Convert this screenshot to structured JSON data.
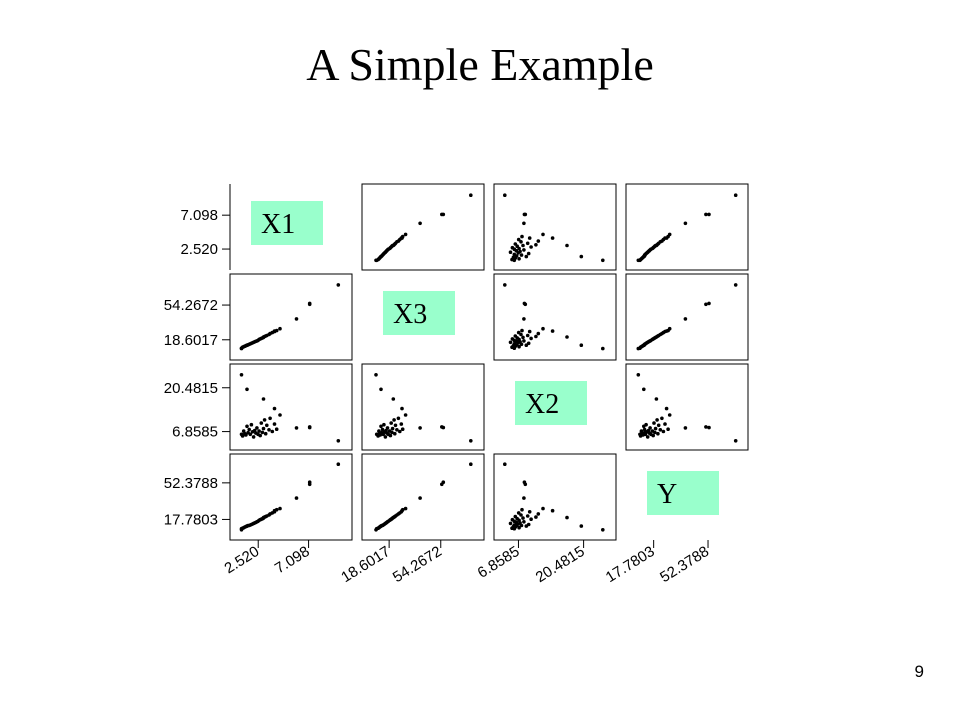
{
  "slide": {
    "title": "A Simple Example",
    "page_number": "9"
  },
  "colors": {
    "label_box": "#99ffcc",
    "points": "#000000",
    "frame": "#000000"
  },
  "chart_data": {
    "type": "scatter",
    "title": "",
    "variables": [
      {
        "name": "X1",
        "ticks": [
          2.52,
          7.098
        ],
        "tick_labels": [
          "2.520",
          "7.098"
        ],
        "range": [
          0.5,
          10.5
        ]
      },
      {
        "name": "X3",
        "ticks": [
          18.6017,
          54.2672
        ],
        "tick_labels": [
          "18.6017",
          "54.2672"
        ],
        "range": [
          4.0,
          80.0
        ]
      },
      {
        "name": "X2",
        "ticks": [
          6.8585,
          20.4815
        ],
        "tick_labels": [
          "6.8585",
          "20.4815"
        ],
        "range": [
          3.0,
          26.0
        ]
      },
      {
        "name": "Y",
        "ticks": [
          17.7803,
          52.3788
        ],
        "tick_labels": [
          "17.7803",
          "52.3788"
        ],
        "range": [
          4.0,
          74.0
        ]
      }
    ],
    "observations": [
      {
        "X1": 1.0,
        "X3": 10.0,
        "X2": 6.0,
        "Y": 9.0
      },
      {
        "X1": 1.1,
        "X3": 11.0,
        "X2": 5.5,
        "Y": 9.5
      },
      {
        "X1": 1.2,
        "X3": 11.5,
        "X2": 7.0,
        "Y": 10.0
      },
      {
        "X1": 1.3,
        "X3": 12.0,
        "X2": 6.2,
        "Y": 10.5
      },
      {
        "X1": 1.4,
        "X3": 12.5,
        "X2": 5.8,
        "Y": 11.0
      },
      {
        "X1": 1.5,
        "X3": 13.0,
        "X2": 8.5,
        "Y": 11.5
      },
      {
        "X1": 1.6,
        "X3": 13.5,
        "X2": 6.5,
        "Y": 12.0
      },
      {
        "X1": 1.7,
        "X3": 14.0,
        "X2": 7.5,
        "Y": 12.0
      },
      {
        "X1": 1.8,
        "X3": 14.5,
        "X2": 6.0,
        "Y": 12.5
      },
      {
        "X1": 1.9,
        "X3": 15.0,
        "X2": 9.0,
        "Y": 13.0
      },
      {
        "X1": 2.0,
        "X3": 15.5,
        "X2": 6.8,
        "Y": 13.5
      },
      {
        "X1": 2.1,
        "X3": 16.0,
        "X2": 5.2,
        "Y": 14.0
      },
      {
        "X1": 2.2,
        "X3": 16.5,
        "X2": 7.2,
        "Y": 14.5
      },
      {
        "X1": 2.3,
        "X3": 17.0,
        "X2": 6.4,
        "Y": 15.0
      },
      {
        "X1": 2.4,
        "X3": 17.5,
        "X2": 8.0,
        "Y": 15.5
      },
      {
        "X1": 2.5,
        "X3": 18.0,
        "X2": 6.0,
        "Y": 16.0
      },
      {
        "X1": 2.6,
        "X3": 19.0,
        "X2": 7.0,
        "Y": 17.0
      },
      {
        "X1": 2.7,
        "X3": 19.5,
        "X2": 5.6,
        "Y": 17.5
      },
      {
        "X1": 2.8,
        "X3": 20.0,
        "X2": 9.5,
        "Y": 18.0
      },
      {
        "X1": 2.9,
        "X3": 20.5,
        "X2": 6.6,
        "Y": 18.5
      },
      {
        "X1": 3.0,
        "X3": 21.0,
        "X2": 7.8,
        "Y": 19.0
      },
      {
        "X1": 3.1,
        "X3": 22.0,
        "X2": 10.5,
        "Y": 20.0
      },
      {
        "X1": 3.2,
        "X3": 22.5,
        "X2": 6.2,
        "Y": 20.5
      },
      {
        "X1": 3.3,
        "X3": 23.0,
        "X2": 8.8,
        "Y": 21.0
      },
      {
        "X1": 3.5,
        "X3": 24.0,
        "X2": 7.4,
        "Y": 22.0
      },
      {
        "X1": 3.6,
        "X3": 25.0,
        "X2": 11.0,
        "Y": 23.0
      },
      {
        "X1": 3.8,
        "X3": 26.0,
        "X2": 6.9,
        "Y": 24.0
      },
      {
        "X1": 4.0,
        "X3": 27.0,
        "X2": 9.2,
        "Y": 25.0
      },
      {
        "X1": 4.2,
        "X3": 28.0,
        "X2": 7.6,
        "Y": 27.0
      },
      {
        "X1": 4.5,
        "X3": 30.0,
        "X2": 12.0,
        "Y": 28.0
      },
      {
        "X1": 4.0,
        "X3": 27.5,
        "X2": 14.0,
        "Y": 26.0
      },
      {
        "X1": 3.0,
        "X3": 21.5,
        "X2": 17.0,
        "Y": 19.5
      },
      {
        "X1": 1.5,
        "X3": 13.0,
        "X2": 20.0,
        "Y": 11.5
      },
      {
        "X1": 6.0,
        "X3": 40.0,
        "X2": 8.0,
        "Y": 38.0
      },
      {
        "X1": 7.2,
        "X3": 55.0,
        "X2": 8.3,
        "Y": 51.0
      },
      {
        "X1": 7.2,
        "X3": 56.0,
        "X2": 8.1,
        "Y": 53.0
      },
      {
        "X1": 9.8,
        "X3": 75.0,
        "X2": 4.0,
        "Y": 70.0
      },
      {
        "X1": 1.0,
        "X3": 9.5,
        "X2": 24.5,
        "Y": 8.0
      }
    ]
  }
}
